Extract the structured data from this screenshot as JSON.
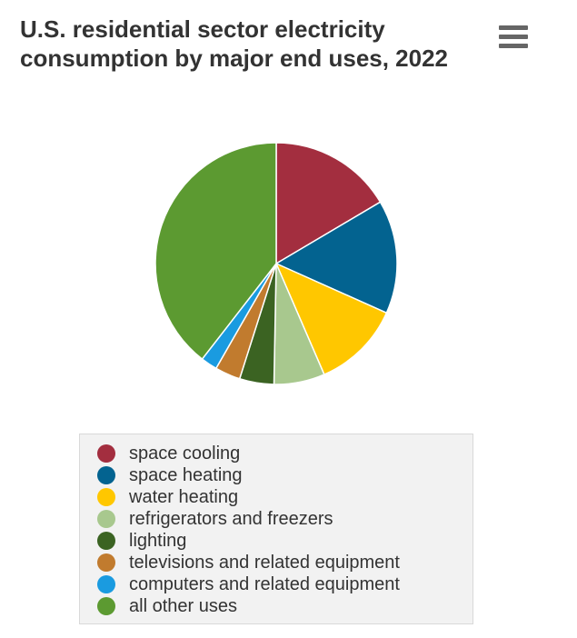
{
  "chart_data": {
    "type": "pie",
    "title": "U.S. residential sector electricity consumption by major end uses, 2022",
    "categories": [
      "space cooling",
      "space heating",
      "water heating",
      "refrigerators and freezers",
      "lighting",
      "televisions and related equipment",
      "computers and related equipment",
      "all other uses"
    ],
    "values": [
      16.5,
      15.2,
      11.8,
      6.8,
      4.6,
      3.4,
      2.2,
      39.5
    ],
    "colors": [
      "#a32e3f",
      "#036390",
      "#ffc700",
      "#a8c88e",
      "#3b6322",
      "#c17b2e",
      "#1a9be0",
      "#5c9a31"
    ],
    "legend_position": "bottom"
  },
  "menu": {
    "icon": "hamburger-menu-icon"
  }
}
